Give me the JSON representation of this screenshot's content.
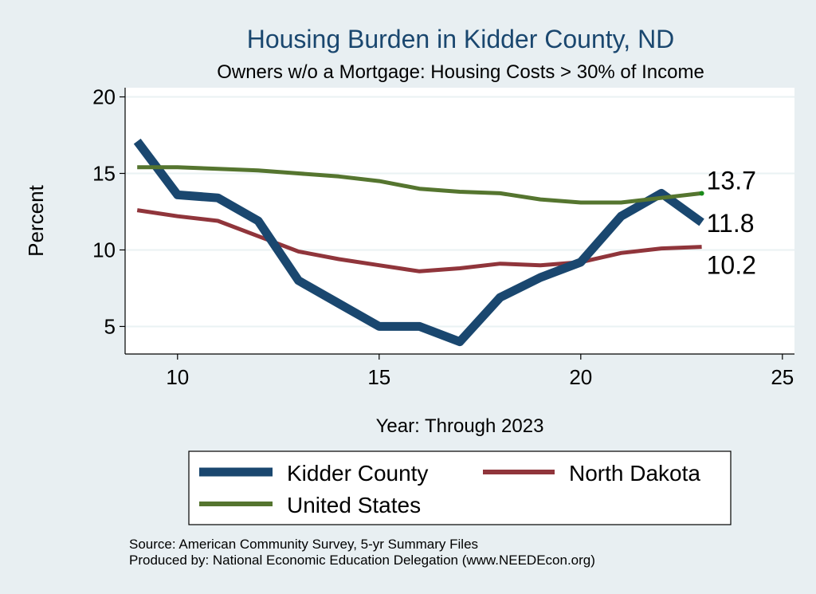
{
  "chart_data": {
    "type": "line",
    "title": "Housing Burden in Kidder County, ND",
    "subtitle": "Owners w/o a Mortgage: Housing Costs > 30% of Income",
    "xlabel": "Year: Through 2023",
    "ylabel": "Percent",
    "xlim": [
      8.7,
      25.3
    ],
    "ylim": [
      3.2,
      20.6
    ],
    "xticks": [
      10,
      15,
      20,
      25
    ],
    "yticks": [
      5,
      10,
      15,
      20
    ],
    "grid": true,
    "legend_position": "bottom",
    "series": [
      {
        "name": "Kidder County",
        "color": "#1a476f",
        "x": [
          9,
          10,
          11,
          12,
          13,
          14,
          15,
          16,
          17,
          18,
          19,
          20,
          21,
          22,
          23
        ],
        "y": [
          17.1,
          13.6,
          13.4,
          11.9,
          8.0,
          6.5,
          5.0,
          5.0,
          4.0,
          6.9,
          8.2,
          9.2,
          12.2,
          13.7,
          11.8
        ],
        "end_label": "11.8"
      },
      {
        "name": "North Dakota",
        "color": "#90353b",
        "x": [
          9,
          10,
          11,
          12,
          13,
          14,
          15,
          16,
          17,
          18,
          19,
          20,
          21,
          22,
          23
        ],
        "y": [
          12.6,
          12.2,
          11.9,
          10.9,
          9.9,
          9.4,
          9.0,
          8.6,
          8.8,
          9.1,
          9.0,
          9.2,
          9.8,
          10.1,
          10.2
        ],
        "end_label": "10.2"
      },
      {
        "name": "United States",
        "color": "#55752f",
        "x": [
          9,
          10,
          11,
          12,
          13,
          14,
          15,
          16,
          17,
          18,
          19,
          20,
          21,
          22,
          23
        ],
        "y": [
          15.4,
          15.4,
          15.3,
          15.2,
          15.0,
          14.8,
          14.5,
          14.0,
          13.8,
          13.7,
          13.3,
          13.1,
          13.1,
          13.4,
          13.7
        ],
        "end_label": "13.7"
      }
    ],
    "legend": [
      "Kidder County",
      "North Dakota",
      "United States"
    ]
  },
  "footer": {
    "source": "Source: American Community Survey, 5-yr Summary Files",
    "producer": "Produced by: National Economic Education Delegation (www.NEEDEcon.org)"
  }
}
